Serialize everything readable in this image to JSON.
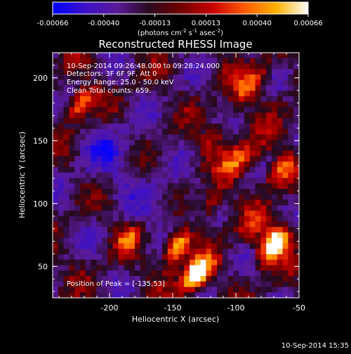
{
  "chart_data": {
    "type": "heatmap",
    "title": "Reconstructed RHESSI Image",
    "xlabel": "Heliocentric X (arcsec)",
    "ylabel": "Heliocentric Y (arcsec)",
    "xlim": [
      -245,
      -50
    ],
    "ylim": [
      25,
      220
    ],
    "x_ticks": [
      -200,
      -150,
      -100,
      -50
    ],
    "y_ticks": [
      50,
      100,
      150,
      200
    ],
    "colorbar": {
      "ticks": [
        "-0.00066",
        "-0.00040",
        "-0.00013",
        "0.00013",
        "0.00040",
        "0.00066"
      ],
      "unit_main": "(photons cm",
      "unit_sup1": "-2",
      "unit_mid1": " s",
      "unit_sup2": "-1",
      "unit_mid2": " asec",
      "unit_sup3": "-2",
      "unit_end": ")",
      "colors": [
        "#0000ff",
        "#3a10c8",
        "#5a1a9a",
        "#2a0a20",
        "#700000",
        "#c80000",
        "#ff5a00",
        "#ffb000",
        "#ffffff"
      ]
    },
    "annotations": [
      "10-Sep-2014 09:26:48.000 to 09:28:24.000",
      "Detectors: 3F 6F 9F, Att 0",
      "Energy Range: 25.0 - 50.0 keV",
      "Clean    Total counts: 659."
    ],
    "peak_label": "Position of Peak = [-135,53]",
    "peak": [
      -135,
      53
    ]
  },
  "footer": {
    "timestamp": "10-Sep-2014 15:35"
  }
}
